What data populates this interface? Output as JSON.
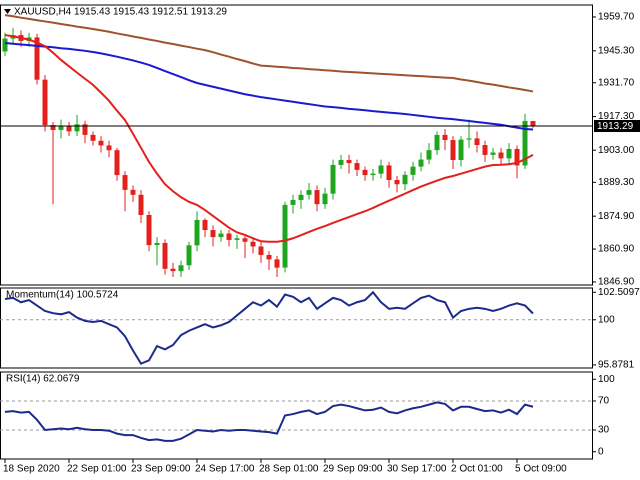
{
  "chart_data": [
    {
      "type": "candlestick",
      "title": "XAUUSD,H4  1915.43 1915.43 1912.51 1913.29",
      "categories": [
        "18 Sep 2020",
        null,
        null,
        null,
        null,
        null,
        null,
        null,
        "22 Sep 01:00",
        null,
        null,
        null,
        null,
        null,
        null,
        null,
        "23 Sep 09:00",
        null,
        null,
        null,
        null,
        null,
        null,
        null,
        "24 Sep 17:00",
        null,
        null,
        null,
        null,
        null,
        null,
        null,
        "28 Sep 01:00",
        null,
        null,
        null,
        null,
        null,
        null,
        null,
        "29 Sep 09:00",
        null,
        null,
        null,
        null,
        null,
        null,
        null,
        "30 Sep 17:00",
        null,
        null,
        null,
        null,
        null,
        null,
        null,
        "2 Oct 01:00",
        null,
        null,
        null,
        null,
        null,
        null,
        null,
        "5 Oct 09:00",
        null,
        null
      ],
      "open": [
        1945.0,
        1950.5,
        1952.0,
        1949.5,
        1951.0,
        1933.0,
        1913.7,
        1911.6,
        1913.5,
        1911.0,
        1914.0,
        1909.5,
        1907.0,
        1905.0,
        1903.0,
        1892.4,
        1886.1,
        1884.0,
        1875.4,
        1862.6,
        1863.5,
        1852.5,
        1851.5,
        1854.0,
        1862.5,
        1873.3,
        1869.0,
        1866.0,
        1867.5,
        1864.8,
        1865.5,
        1864.0,
        1862.0,
        1858.4,
        1856.5,
        1853.0,
        1879.7,
        1881.8,
        1884.0,
        1886.0,
        1880.0,
        1884.5,
        1896.7,
        1898.8,
        1897.5,
        1894.6,
        1892.4,
        1893.0,
        1896.5,
        1890.3,
        1888.5,
        1892.5,
        1896.0,
        1899.0,
        1903.0,
        1909.5,
        1907.3,
        1898.8,
        1907.5,
        1908.0,
        1905.2,
        1901.0,
        1902.0,
        1899.5,
        1903.5,
        1896.5,
        1915.43
      ],
      "high": [
        1953,
        1955,
        1954,
        1953,
        1952.5,
        1935,
        1915,
        1916,
        1915,
        1918,
        1915.5,
        1911,
        1909,
        1907,
        1904,
        1894,
        1888,
        1886,
        1877,
        1866,
        1865,
        1855,
        1856,
        1864,
        1877,
        1874,
        1871,
        1869,
        1869,
        1867,
        1867,
        1866,
        1864,
        1860,
        1858,
        1881,
        1884,
        1886,
        1889,
        1888,
        1887,
        1899,
        1901,
        1901,
        1899,
        1896,
        1895,
        1899,
        1898,
        1892,
        1894,
        1898,
        1902,
        1906,
        1911,
        1912,
        1909,
        1909,
        1916,
        1911,
        1907,
        1904,
        1904,
        1906,
        1905,
        1918.5,
        1915.43
      ],
      "low": [
        1943,
        1948,
        1947,
        1947,
        1931,
        1911,
        1880,
        1908,
        1909,
        1909,
        1906,
        1905,
        1902,
        1900,
        1890,
        1877,
        1881,
        1872,
        1860,
        1854,
        1850,
        1849,
        1849,
        1852,
        1860,
        1866,
        1862,
        1864,
        1862,
        1861,
        1857,
        1859,
        1855,
        1852,
        1849,
        1851,
        1876,
        1878,
        1882,
        1877,
        1878,
        1882,
        1895,
        1893,
        1892,
        1890,
        1890,
        1891,
        1887,
        1885,
        1886,
        1890,
        1894,
        1897,
        1901,
        1903,
        1895,
        1896,
        1904,
        1902,
        1898,
        1899,
        1897,
        1897,
        1891,
        1895,
        1912.51
      ],
      "close": [
        1950.5,
        1952.0,
        1949.5,
        1951.0,
        1933.0,
        1913.7,
        1911.6,
        1913.5,
        1911.0,
        1914.0,
        1909.5,
        1907.0,
        1905.0,
        1903.0,
        1892.4,
        1886.1,
        1884.0,
        1875.4,
        1862.6,
        1863.5,
        1852.5,
        1851.5,
        1854.0,
        1862.5,
        1873.3,
        1869.0,
        1866.0,
        1867.5,
        1864.8,
        1865.5,
        1864.0,
        1862.0,
        1858.4,
        1856.5,
        1853.0,
        1879.7,
        1881.8,
        1884.0,
        1886.0,
        1880.0,
        1884.5,
        1896.7,
        1898.8,
        1897.5,
        1894.6,
        1892.4,
        1893.0,
        1896.5,
        1890.3,
        1888.5,
        1892.5,
        1896.0,
        1899.0,
        1903.0,
        1909.5,
        1907.3,
        1898.8,
        1907.5,
        1908.0,
        1905.2,
        1901.0,
        1902.0,
        1899.5,
        1903.5,
        1896.5,
        1915.43,
        1913.29
      ],
      "up_color": "#1fa51f",
      "down_color": "#e3201b",
      "series": [
        {
          "color": "#a0522d",
          "values": [
            1960.5,
            1960.0,
            1959.4,
            1958.9,
            1958.3,
            1957.8,
            1957.3,
            1956.7,
            1956.2,
            1955.6,
            1955.1,
            1954.6,
            1954.0,
            1953.4,
            1952.7,
            1952.1,
            1951.4,
            1950.8,
            1950.1,
            1949.5,
            1948.8,
            1948.2,
            1947.5,
            1946.9,
            1946.2,
            1945.6,
            1944.7,
            1943.7,
            1942.8,
            1941.8,
            1940.9,
            1939.9,
            1939.0,
            1938.8,
            1938.5,
            1938.3,
            1938.0,
            1937.8,
            1937.5,
            1937.3,
            1937.0,
            1936.8,
            1936.5,
            1936.3,
            1936.1,
            1935.9,
            1935.7,
            1935.5,
            1935.3,
            1935.1,
            1934.9,
            1934.7,
            1934.5,
            1934.3,
            1934.1,
            1933.9,
            1933.7,
            1933.1,
            1932.6,
            1932.0,
            1931.4,
            1930.9,
            1930.3,
            1929.7,
            1929.2,
            1928.6,
            1928.0
          ]
        },
        {
          "color": "#1a1ad0",
          "values": [
            1948.6,
            1948.3,
            1948.0,
            1947.7,
            1947.4,
            1947.1,
            1946.8,
            1946.4,
            1946.1,
            1945.7,
            1945.3,
            1944.8,
            1944.2,
            1943.5,
            1942.8,
            1942.0,
            1941.2,
            1940.3,
            1939.3,
            1938.0,
            1936.7,
            1935.4,
            1934.1,
            1932.8,
            1931.6,
            1930.8,
            1930.0,
            1929.2,
            1928.4,
            1927.6,
            1926.8,
            1926.2,
            1925.6,
            1925.1,
            1924.6,
            1924.1,
            1923.6,
            1923.1,
            1922.6,
            1922.1,
            1921.6,
            1921.3,
            1921.0,
            1920.6,
            1920.3,
            1920.0,
            1919.6,
            1919.3,
            1919.0,
            1918.7,
            1918.4,
            1918.0,
            1917.6,
            1917.2,
            1916.8,
            1916.5,
            1916.2,
            1915.8,
            1915.4,
            1915.0,
            1914.6,
            1914.2,
            1913.8,
            1913.2,
            1912.6,
            1912.0,
            1911.8
          ]
        },
        {
          "color": "#e3201b",
          "values": [
            1952.0,
            1951.5,
            1950.8,
            1950.0,
            1948.8,
            1947.3,
            1944.5,
            1941.4,
            1938.7,
            1936.0,
            1933.4,
            1930.8,
            1927.5,
            1924.0,
            1919.8,
            1915.8,
            1910.0,
            1904.0,
            1898.0,
            1893.0,
            1888.5,
            1885.5,
            1883.0,
            1881.0,
            1879.7,
            1877.5,
            1875.0,
            1872.5,
            1870.0,
            1868.0,
            1866.9,
            1865.5,
            1864.2,
            1864.0,
            1864.0,
            1864.5,
            1865.5,
            1866.8,
            1868.2,
            1869.5,
            1870.7,
            1872.0,
            1873.3,
            1874.5,
            1875.8,
            1877.0,
            1878.4,
            1880.0,
            1881.5,
            1883.0,
            1884.5,
            1886.0,
            1887.5,
            1888.8,
            1890.0,
            1891.2,
            1892.0,
            1893.0,
            1894.0,
            1895.0,
            1896.0,
            1896.7,
            1896.8,
            1897.0,
            1897.6,
            1899.2,
            1901.0
          ]
        }
      ],
      "last_price": 1913.29,
      "ylim": [
        1845.6,
        1964.8
      ],
      "yticks": [
        {
          "value": 1959.7,
          "label": "1959.70"
        },
        {
          "value": 1945.3,
          "label": "1945.30"
        },
        {
          "value": 1931.7,
          "label": "1931.70"
        },
        {
          "value": 1917.3,
          "label": "1917.30"
        },
        {
          "value": 1903.0,
          "label": "1903.00"
        },
        {
          "value": 1889.3,
          "label": "1889.30"
        },
        {
          "value": 1874.9,
          "label": "1874.90"
        },
        {
          "value": 1860.9,
          "label": "1860.90"
        },
        {
          "value": 1846.9,
          "label": "1846.90"
        }
      ]
    },
    {
      "type": "line",
      "title": "Momentum(14) 100.5724",
      "color": "#1c2a8c",
      "values": [
        101.9,
        102.0,
        101.6,
        101.8,
        101.3,
        100.8,
        100.6,
        100.5,
        100.7,
        100.2,
        99.9,
        99.8,
        99.9,
        99.6,
        99.3,
        98.5,
        97.2,
        96.0,
        96.3,
        97.6,
        97.3,
        97.7,
        98.6,
        99.0,
        99.3,
        99.6,
        99.3,
        99.5,
        99.8,
        100.4,
        101.0,
        101.6,
        101.3,
        101.8,
        101.2,
        102.3,
        102.1,
        101.6,
        102.0,
        101.0,
        101.5,
        102.0,
        101.8,
        101.3,
        101.6,
        101.8,
        102.5097,
        101.6,
        101.0,
        101.1,
        101.0,
        101.5,
        102.0,
        102.2,
        101.8,
        101.6,
        100.2,
        100.8,
        101.0,
        101.1,
        101.0,
        100.8,
        101.0,
        101.3,
        101.5,
        101.3,
        100.5724
      ],
      "ylim": [
        95.6,
        102.9
      ],
      "yticks": [
        102.5097,
        100,
        95.8781
      ],
      "levels": [
        100
      ]
    },
    {
      "type": "line",
      "title": "RSI(14) 62.0679",
      "color": "#1c2a8c",
      "values": [
        55,
        56,
        54,
        55,
        44,
        30,
        31,
        32,
        31,
        33,
        31,
        30,
        30,
        29,
        25,
        23,
        23,
        19,
        16,
        17,
        15,
        15,
        18,
        24,
        30,
        29,
        28,
        30,
        29,
        30,
        30,
        29,
        28,
        27,
        25,
        50,
        52,
        55,
        57,
        52,
        55,
        63,
        65,
        63,
        60,
        57,
        58,
        61,
        55,
        53,
        57,
        60,
        62,
        65,
        68,
        66,
        57,
        62,
        62,
        59,
        56,
        57,
        54,
        58,
        52,
        65,
        62.0679
      ],
      "ylim": [
        -10,
        110
      ],
      "yticks": [
        100,
        70,
        30,
        0
      ],
      "levels": [
        70,
        30
      ]
    }
  ]
}
